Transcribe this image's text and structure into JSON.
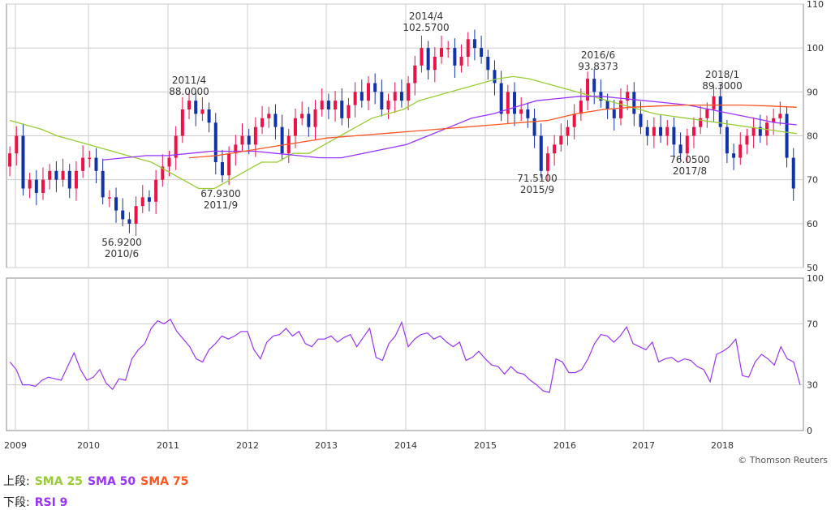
{
  "chart_data": {
    "type": "candlestick",
    "price_panel": {
      "ylim": [
        50,
        110
      ],
      "yticks": [
        "50",
        "60",
        "70",
        "80",
        "90",
        "100",
        "110"
      ],
      "annotations": [
        {
          "label": "2014/4",
          "value": "102.5700"
        },
        {
          "label": "2016/6",
          "value": "93.8373"
        },
        {
          "label": "2011/4",
          "value": "88.0000"
        },
        {
          "label": "2018/1",
          "value": "89.3000"
        },
        {
          "value": "67.9300",
          "label": "2011/9"
        },
        {
          "value": "56.9200",
          "label": "2010/6"
        },
        {
          "value": "71.5100",
          "label": "2015/9"
        },
        {
          "value": "76.0500",
          "label": "2017/8"
        }
      ],
      "monthly_close": [
        76,
        80,
        68,
        70,
        67,
        70,
        72,
        70,
        72,
        68,
        72,
        75,
        75,
        72,
        66,
        66,
        63,
        61,
        60,
        64,
        66,
        65,
        70,
        73,
        75,
        80,
        86,
        88,
        85,
        86,
        83,
        74,
        71,
        76,
        78,
        80,
        78,
        82,
        84,
        85,
        82,
        76,
        80,
        84,
        85,
        82,
        86,
        88,
        86,
        88,
        84,
        87,
        90,
        88,
        92,
        90,
        86,
        88,
        90,
        88,
        92,
        96,
        100,
        95,
        98,
        100,
        100,
        96,
        98,
        102,
        100,
        98,
        95,
        92,
        85,
        90,
        85,
        86,
        84,
        80,
        72,
        76,
        78,
        80,
        82,
        85,
        88,
        93,
        90,
        88,
        86,
        84,
        88,
        90,
        85,
        82,
        80,
        82,
        80,
        82,
        78,
        76,
        80,
        82,
        84,
        86,
        89,
        82,
        76,
        75,
        78,
        80,
        82,
        80,
        83,
        84,
        85,
        75,
        68
      ],
      "series": [
        {
          "name": "SMA 25",
          "color": "#99cc33",
          "values": [
            83.5,
            82.5,
            81.5,
            80,
            79,
            78,
            77,
            76,
            75,
            74,
            72,
            70,
            68,
            68,
            70,
            72,
            74,
            74,
            76,
            76,
            78,
            80,
            82,
            84,
            85,
            86,
            88,
            89,
            90,
            91,
            92,
            93,
            93.5,
            93,
            92,
            91,
            90,
            89,
            88,
            87,
            86,
            85,
            84.5,
            84,
            83.5,
            83,
            82.5,
            82,
            81.5,
            81,
            80.5
          ]
        },
        {
          "name": "SMA 50",
          "color": "#9933ff",
          "values": [
            74.5,
            75,
            75.5,
            75.5,
            76,
            76.5,
            76.5,
            76.5,
            76,
            75.5,
            75,
            75,
            76,
            77,
            78,
            80,
            82,
            84,
            85,
            86.5,
            88,
            88.5,
            89,
            89,
            88.5,
            88,
            87.5,
            87,
            86,
            85,
            84,
            83,
            82.5
          ]
        },
        {
          "name": "SMA 75",
          "color": "#ff5522",
          "values": [
            75,
            75.5,
            76.5,
            77.5,
            78.5,
            79.5,
            80,
            80.5,
            81,
            81.5,
            82,
            82.5,
            83,
            83.5,
            85,
            86,
            86.5,
            86.8,
            87,
            87,
            87,
            86.8,
            86.5
          ]
        }
      ]
    },
    "rsi_panel": {
      "name": "RSI 9",
      "color": "#9933ff",
      "ylim": [
        0,
        100
      ],
      "yticks": [
        "0",
        "30",
        "70",
        "100"
      ],
      "values": [
        45,
        40,
        30,
        30,
        29,
        33,
        35,
        34,
        33,
        42,
        51,
        40,
        33,
        35,
        40,
        31,
        27,
        34,
        33,
        47,
        53,
        57,
        67,
        72,
        70,
        73,
        65,
        60,
        55,
        47,
        45,
        53,
        57,
        62,
        60,
        62,
        65,
        65,
        53,
        47,
        58,
        62,
        63,
        67,
        62,
        65,
        57,
        55,
        60,
        60,
        62,
        58,
        61,
        63,
        55,
        61,
        67,
        48,
        46,
        57,
        62,
        71,
        55,
        60,
        63,
        64,
        60,
        62,
        58,
        55,
        58,
        46,
        48,
        52,
        47,
        43,
        42,
        37,
        42,
        38,
        37,
        33,
        30,
        26,
        25,
        47,
        45,
        38,
        38,
        40,
        47,
        57,
        63,
        62,
        58,
        62,
        68,
        57,
        55,
        53,
        58,
        45,
        47,
        48,
        45,
        47,
        46,
        42,
        40,
        32,
        50,
        52,
        55,
        60,
        36,
        35,
        45,
        50,
        47,
        43,
        55,
        47,
        45,
        30
      ],
      "x_labels": [
        "2009",
        "2010",
        "2011",
        "2012",
        "2013",
        "2014",
        "2015",
        "2016",
        "2017",
        "2018"
      ]
    },
    "legend": {
      "upper_label": "上段:",
      "lower_label": "下段:",
      "upper_items": [
        {
          "name": "SMA 25",
          "color": "#99cc33"
        },
        {
          "name": "SMA 50",
          "color": "#9933ff"
        },
        {
          "name": "SMA 75",
          "color": "#ff5522"
        }
      ],
      "lower_items": [
        {
          "name": "RSI 9",
          "color": "#9933ff"
        }
      ]
    },
    "up_color": "#ee1144",
    "down_color": "#1133aa",
    "grid": true,
    "copyright": "© Thomson Reuters"
  }
}
